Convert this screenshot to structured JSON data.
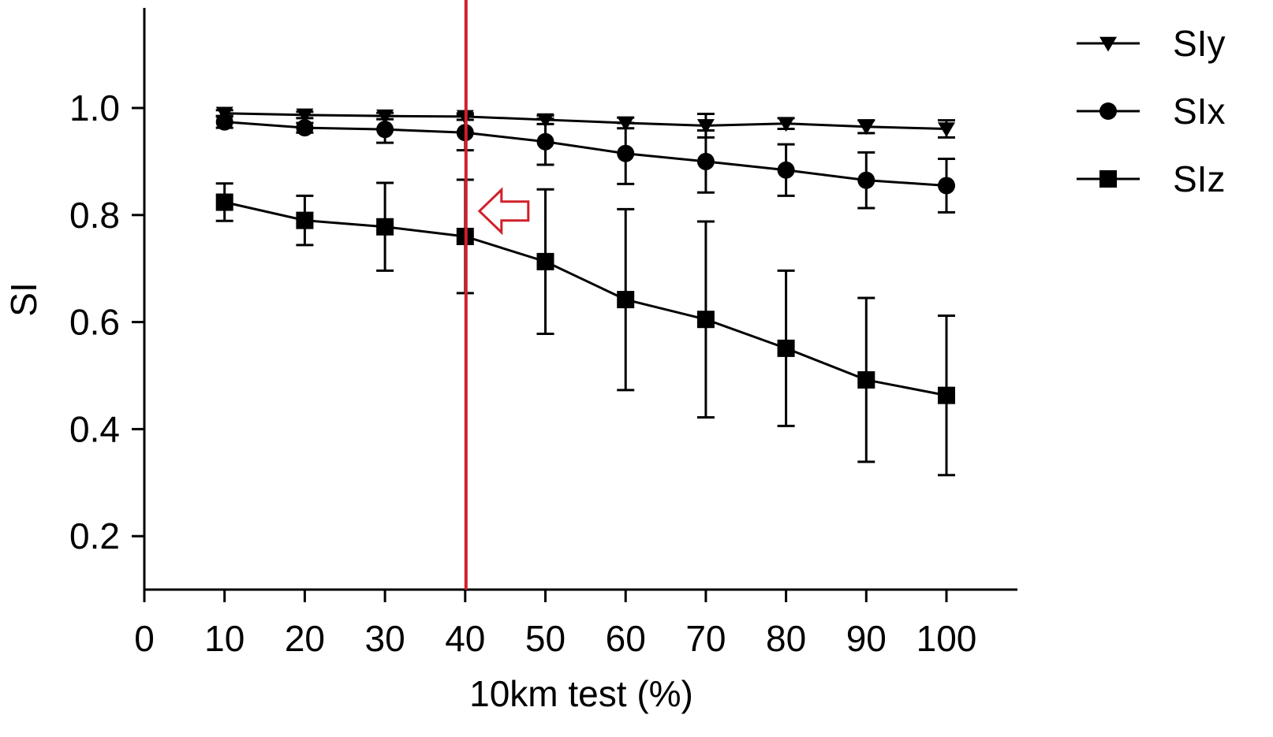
{
  "chart_data": {
    "type": "line",
    "title": "",
    "xlabel": "10km test (%)",
    "ylabel": "SI",
    "xlim": [
      0,
      109
    ],
    "ylim": [
      0.1,
      1.2
    ],
    "xticks": [
      0,
      10,
      20,
      30,
      40,
      50,
      60,
      70,
      80,
      90,
      100
    ],
    "xtick_labels": [
      "0",
      "10",
      "20",
      "30",
      "40",
      "50",
      "60",
      "70",
      "80",
      "90",
      "100"
    ],
    "yticks": [
      0.2,
      0.4,
      0.6,
      0.8,
      1.0
    ],
    "ytick_labels": [
      "0.2",
      "0.4",
      "0.6",
      "0.8",
      "1.0"
    ],
    "x": [
      10,
      20,
      30,
      40,
      50,
      60,
      70,
      80,
      90,
      100
    ],
    "legend_position": "top-right",
    "series": [
      {
        "name": "SIy",
        "marker": "triangle-down",
        "values": [
          0.99,
          0.987,
          0.985,
          0.984,
          0.978,
          0.972,
          0.967,
          0.971,
          0.965,
          0.961
        ],
        "errors": [
          0.006,
          0.006,
          0.006,
          0.006,
          0.008,
          0.01,
          0.022,
          0.01,
          0.012,
          0.016
        ]
      },
      {
        "name": "SIx",
        "marker": "circle",
        "values": [
          0.974,
          0.963,
          0.96,
          0.954,
          0.937,
          0.915,
          0.9,
          0.884,
          0.865,
          0.855
        ],
        "errors": [
          0.011,
          0.009,
          0.025,
          0.033,
          0.043,
          0.057,
          0.058,
          0.048,
          0.052,
          0.05
        ]
      },
      {
        "name": "SIz",
        "marker": "square",
        "values": [
          0.824,
          0.79,
          0.778,
          0.76,
          0.713,
          0.642,
          0.605,
          0.551,
          0.492,
          0.463
        ],
        "errors": [
          0.035,
          0.046,
          0.082,
          0.106,
          0.135,
          0.169,
          0.183,
          0.145,
          0.153,
          0.149
        ]
      }
    ],
    "annotations": [
      {
        "type": "vertical-line",
        "x": 40,
        "color": "#d0202a"
      },
      {
        "type": "arrow",
        "direction": "left",
        "x": 40,
        "y": 0.8,
        "color": "#d0202a"
      }
    ]
  }
}
